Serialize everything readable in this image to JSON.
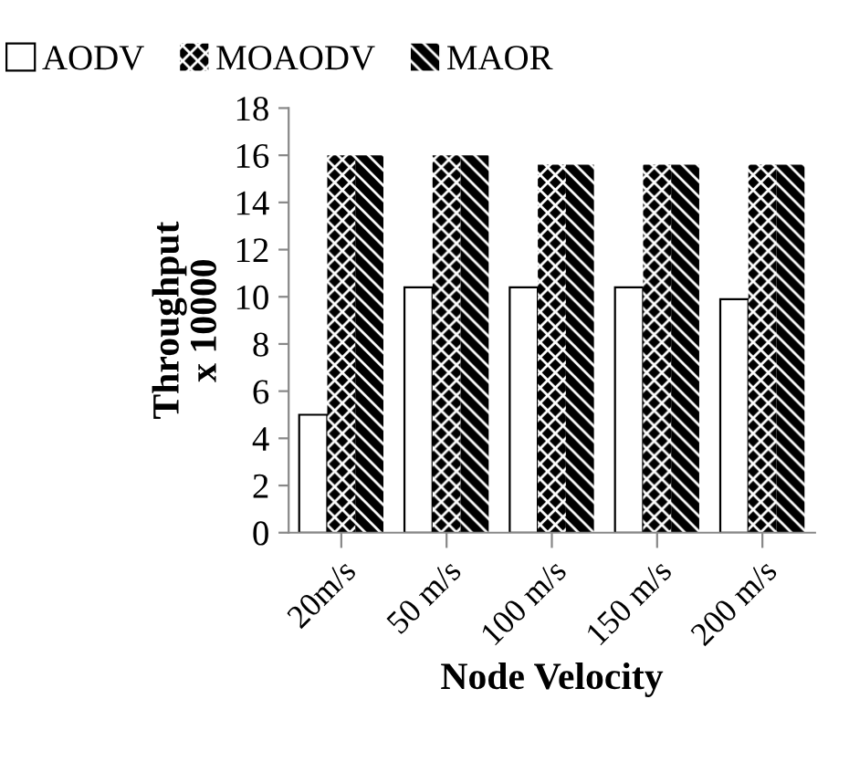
{
  "chart_data": {
    "type": "bar",
    "xlabel": "Node Velocity",
    "ylabel": "Throughput\nx 10000",
    "categories": [
      "20m/s",
      "50 m/s",
      "100 m/s",
      "150 m/s",
      "200 m/s"
    ],
    "series": [
      {
        "name": "AODV",
        "color": "#ffffff",
        "values": [
          5,
          10.4,
          10.4,
          10.4,
          9.9
        ]
      },
      {
        "name": "MOAODV",
        "color": "#000000",
        "values": [
          16,
          16,
          15.6,
          15.6,
          15.6
        ]
      },
      {
        "name": "MAOR",
        "color": "#000000",
        "values": [
          16,
          16,
          15.6,
          15.6,
          15.6
        ]
      }
    ],
    "ylim": [
      0,
      18
    ],
    "yticks": [
      0,
      2,
      4,
      6,
      8,
      10,
      12,
      14,
      16,
      18
    ],
    "grid": false,
    "legend": "top"
  }
}
